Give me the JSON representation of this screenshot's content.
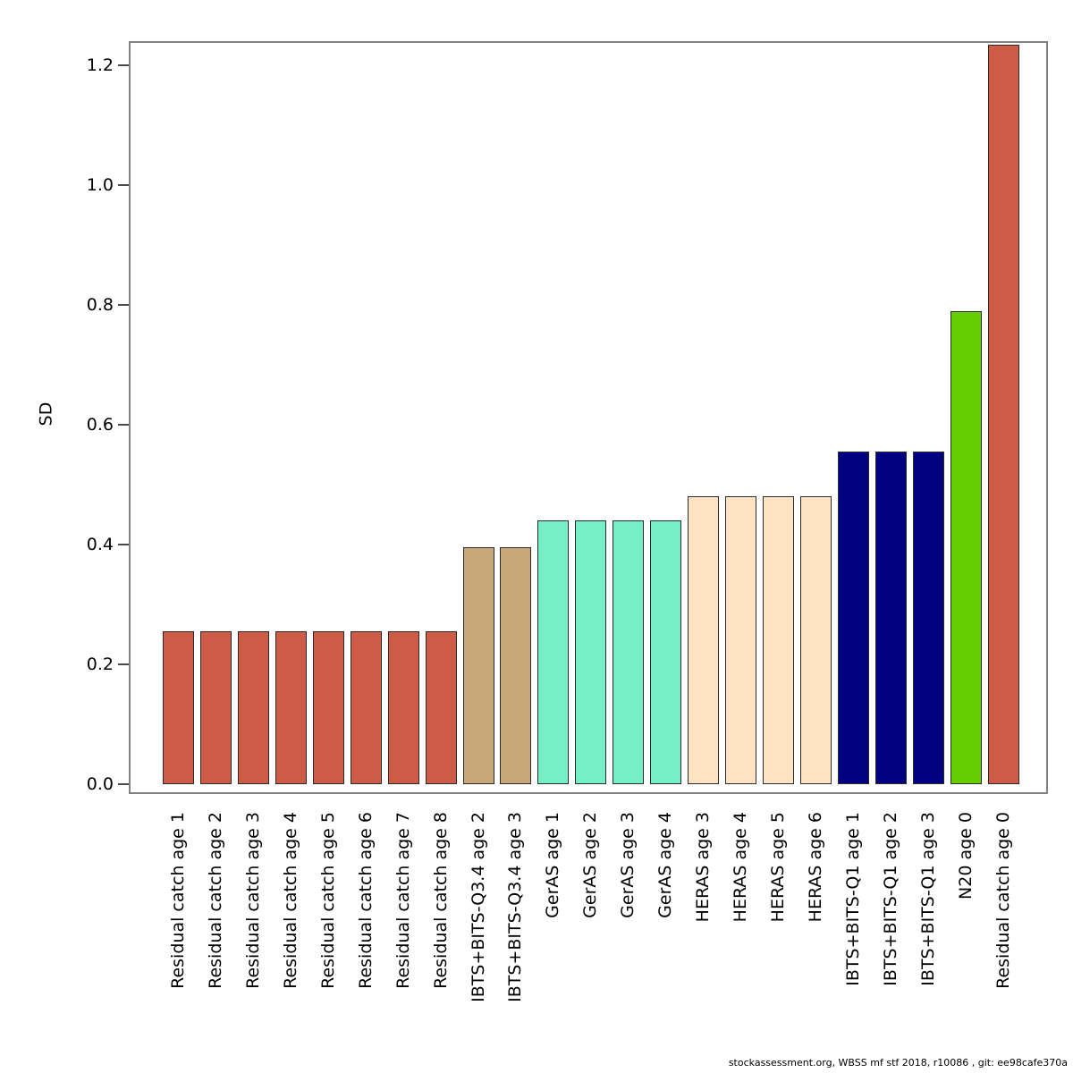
{
  "chart_data": {
    "type": "bar",
    "title": "",
    "xlabel": "",
    "ylabel": "SD",
    "grid": false,
    "legend": false,
    "ylim": [
      0,
      1.26
    ],
    "yticks": [
      "0.0",
      "0.2",
      "0.4",
      "0.6",
      "0.8",
      "1.0",
      "1.2"
    ],
    "categories": [
      "Residual catch age 1",
      "Residual catch age 2",
      "Residual catch age 3",
      "Residual catch age 4",
      "Residual catch age 5",
      "Residual catch age 6",
      "Residual catch age 7",
      "Residual catch age 8",
      "IBTS+BITS-Q3.4 age 2",
      "IBTS+BITS-Q3.4 age 3",
      "GerAS age 1",
      "GerAS age 2",
      "GerAS age 3",
      "GerAS age 4",
      "HERAS age 3",
      "HERAS age 4",
      "HERAS age 5",
      "HERAS age 6",
      "IBTS+BITS-Q1 age 1",
      "IBTS+BITS-Q1 age 2",
      "IBTS+BITS-Q1 age 3",
      "N20 age 0",
      "Residual catch age 0"
    ],
    "values": [
      0.255,
      0.255,
      0.255,
      0.255,
      0.255,
      0.255,
      0.255,
      0.255,
      0.395,
      0.395,
      0.44,
      0.44,
      0.44,
      0.44,
      0.48,
      0.48,
      0.48,
      0.48,
      0.555,
      0.555,
      0.555,
      0.79,
      1.235
    ],
    "colors": [
      "#CD5B45",
      "#CD5B45",
      "#CD5B45",
      "#CD5B45",
      "#CD5B45",
      "#CD5B45",
      "#CD5B45",
      "#CD5B45",
      "#C9A878",
      "#C9A878",
      "#76EEC6",
      "#76EEC6",
      "#76EEC6",
      "#76EEC6",
      "#FFE4C4",
      "#FFE4C4",
      "#FFE4C4",
      "#FFE4C4",
      "#000080",
      "#000080",
      "#000080",
      "#66CD00",
      "#CD5B45"
    ]
  },
  "footer": {
    "text": "stockassessment.org, WBSS mf stf 2018, r10086 , git: ee98cafe370a"
  }
}
